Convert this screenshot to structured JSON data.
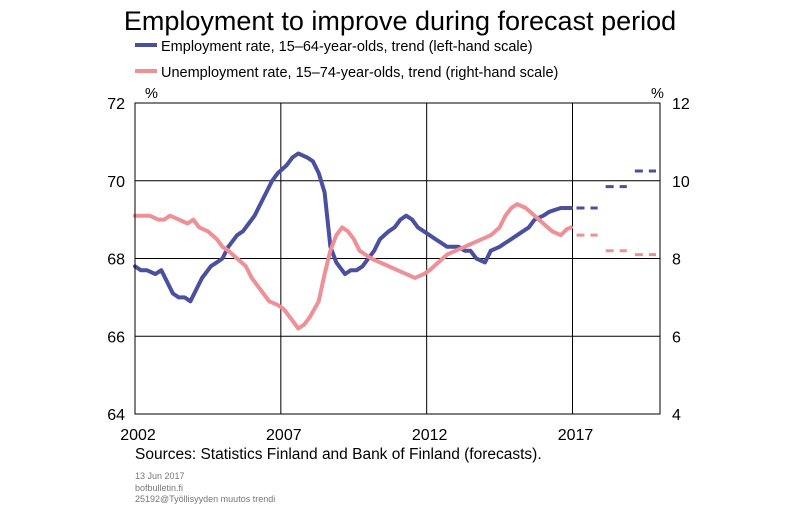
{
  "title": "Employment to improve during forecast period",
  "legend": [
    {
      "label": "Employment rate, 15–64-year-olds, trend (left-hand scale)",
      "color": "#4a4fa0"
    },
    {
      "label": "Unemployment rate, 15–74-year-olds, trend (right-hand scale)",
      "color": "#ef8f96"
    }
  ],
  "units": {
    "left": "%",
    "right": "%"
  },
  "sources": "Sources: Statistics Finland and Bank of Finland (forecasts).",
  "footer": {
    "date": "13 Jun 2017",
    "site": "bofbulletin.fi",
    "code": "25192@Työllisyyden muutos trendi"
  },
  "chart_data": {
    "type": "line",
    "title": "Employment to improve during forecast period",
    "xlim": [
      2002,
      2020
    ],
    "x_ticks": [
      "2002",
      "2007",
      "2012",
      "2017"
    ],
    "y_left": {
      "lim": [
        64,
        72
      ],
      "ticks": [
        "64",
        "66",
        "68",
        "70",
        "72"
      ]
    },
    "y_right": {
      "lim": [
        4,
        12
      ],
      "ticks": [
        "4",
        "6",
        "8",
        "10",
        "12"
      ]
    },
    "grid": true,
    "legend_position": "top-left",
    "series": [
      {
        "name": "Employment rate, 15–64-year-olds, trend (left-hand scale)",
        "axis": "left",
        "color": "#4a4fa0",
        "x": [
          2002.0,
          2002.2,
          2002.4,
          2002.7,
          2002.9,
          2003.1,
          2003.3,
          2003.5,
          2003.7,
          2003.9,
          2004.1,
          2004.3,
          2004.4,
          2004.6,
          2004.8,
          2005.0,
          2005.2,
          2005.5,
          2005.7,
          2005.9,
          2006.1,
          2006.3,
          2006.5,
          2006.7,
          2006.9,
          2007.2,
          2007.4,
          2007.6,
          2007.9,
          2008.1,
          2008.3,
          2008.5,
          2008.7,
          2008.9,
          2009.1,
          2009.2,
          2009.4,
          2009.6,
          2009.8,
          2010.0,
          2010.2,
          2010.4,
          2010.7,
          2010.9,
          2011.1,
          2011.3,
          2011.5,
          2011.7,
          2011.9,
          2012.1,
          2012.3,
          2012.5,
          2012.7,
          2012.9,
          2013.1,
          2013.3,
          2013.5,
          2013.7,
          2014.0,
          2014.2,
          2014.5,
          2014.7,
          2014.9,
          2015.1,
          2015.3,
          2015.5,
          2015.7,
          2016.0,
          2016.2,
          2016.4,
          2016.6,
          2016.8,
          2016.95
        ],
        "values": [
          67.8,
          67.7,
          67.7,
          67.6,
          67.7,
          67.4,
          67.1,
          67.0,
          67.0,
          66.9,
          67.2,
          67.5,
          67.6,
          67.8,
          67.9,
          68.0,
          68.3,
          68.6,
          68.7,
          68.9,
          69.1,
          69.4,
          69.7,
          70.0,
          70.2,
          70.4,
          70.6,
          70.7,
          70.6,
          70.5,
          70.2,
          69.7,
          68.3,
          67.9,
          67.7,
          67.6,
          67.7,
          67.7,
          67.8,
          68.0,
          68.2,
          68.5,
          68.7,
          68.8,
          69.0,
          69.1,
          69.0,
          68.8,
          68.7,
          68.6,
          68.5,
          68.4,
          68.3,
          68.3,
          68.3,
          68.2,
          68.2,
          68.0,
          67.9,
          68.2,
          68.3,
          68.4,
          68.5,
          68.6,
          68.7,
          68.8,
          69.0,
          69.1,
          69.2,
          69.25,
          69.3,
          69.3,
          69.3
        ]
      },
      {
        "name": "Unemployment rate, 15–74-year-olds, trend (right-hand scale)",
        "axis": "right",
        "color": "#ef8f96",
        "x": [
          2002.0,
          2002.5,
          2002.8,
          2003.0,
          2003.2,
          2003.5,
          2003.8,
          2004.0,
          2004.2,
          2004.5,
          2004.8,
          2005.0,
          2005.2,
          2005.5,
          2005.8,
          2006.0,
          2006.3,
          2006.6,
          2006.9,
          2007.1,
          2007.4,
          2007.6,
          2007.8,
          2008.0,
          2008.3,
          2008.5,
          2008.7,
          2008.9,
          2009.1,
          2009.3,
          2009.5,
          2009.7,
          2009.9,
          2010.1,
          2010.4,
          2010.7,
          2011.0,
          2011.3,
          2011.6,
          2011.9,
          2012.1,
          2012.4,
          2012.7,
          2013.0,
          2013.3,
          2013.6,
          2013.9,
          2014.2,
          2014.5,
          2014.7,
          2014.9,
          2015.1,
          2015.4,
          2015.7,
          2016.0,
          2016.3,
          2016.6,
          2016.8,
          2016.95
        ],
        "values": [
          9.1,
          9.1,
          9.0,
          9.0,
          9.1,
          9.0,
          8.9,
          9.0,
          8.8,
          8.7,
          8.5,
          8.3,
          8.2,
          8.0,
          7.8,
          7.5,
          7.2,
          6.9,
          6.8,
          6.7,
          6.4,
          6.2,
          6.3,
          6.5,
          6.9,
          7.6,
          8.2,
          8.6,
          8.8,
          8.7,
          8.5,
          8.2,
          8.1,
          8.0,
          7.9,
          7.8,
          7.7,
          7.6,
          7.5,
          7.6,
          7.7,
          7.9,
          8.1,
          8.2,
          8.3,
          8.4,
          8.5,
          8.6,
          8.8,
          9.1,
          9.3,
          9.4,
          9.3,
          9.1,
          8.9,
          8.7,
          8.6,
          8.75,
          8.8
        ]
      },
      {
        "name": "",
        "axis": "left",
        "color": "#4a4fa0",
        "forecast": true,
        "x": [
          [
            2017.0,
            2018.0
          ],
          [
            2018.0,
            2019.0
          ],
          [
            2019.0,
            2020.0
          ]
        ],
        "values": [
          69.3,
          69.85,
          70.25
        ]
      },
      {
        "name": "",
        "axis": "right",
        "color": "#ef8f96",
        "forecast": true,
        "x": [
          [
            2017.0,
            2018.0
          ],
          [
            2018.0,
            2019.0
          ],
          [
            2019.0,
            2020.0
          ]
        ],
        "values": [
          8.6,
          8.2,
          8.1
        ]
      }
    ]
  }
}
